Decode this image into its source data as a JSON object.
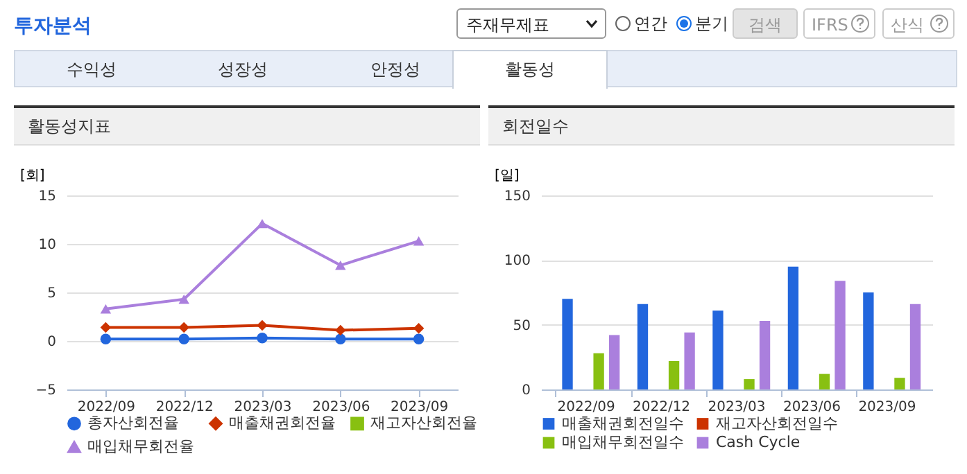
{
  "chart_data": [
    {
      "type": "other",
      "title": "투자분석",
      "annotations": [
        "주재무제표",
        "연간",
        "분기",
        "검색",
        "IFRS",
        "산식",
        "수익성",
        "성장성",
        "안정성",
        "활동성"
      ]
    },
    {
      "type": "line",
      "title": "활동성지표",
      "ylabel": "[회]",
      "categories": [
        "2022/09",
        "2022/12",
        "2023/03",
        "2023/06",
        "2023/09"
      ],
      "ylim": [
        -5,
        15
      ],
      "yticks": [
        -5,
        0,
        5,
        10,
        15
      ],
      "grid": "y",
      "legend": "bottom",
      "series": [
        {
          "name": "총자산회전율",
          "color": "#2266dd",
          "marker": "circle",
          "values": [
            0.2,
            0.2,
            0.3,
            0.2,
            0.2
          ]
        },
        {
          "name": "매출채권회전율",
          "color": "#cc3300",
          "marker": "diamond",
          "values": [
            1.4,
            1.4,
            1.6,
            1.1,
            1.3
          ]
        },
        {
          "name": "재고자산회전율",
          "color": "#88c011",
          "marker": "square",
          "values": [
            null,
            null,
            null,
            null,
            null
          ]
        },
        {
          "name": "매입채무회전율",
          "color": "#aa7fdd",
          "marker": "triangle",
          "values": [
            3.3,
            4.3,
            12.1,
            7.8,
            10.3
          ]
        }
      ]
    },
    {
      "type": "bar",
      "title": "회전일수",
      "ylabel": "[일]",
      "categories": [
        "2022/09",
        "2022/12",
        "2023/03",
        "2023/06",
        "2023/09"
      ],
      "ylim": [
        0,
        150
      ],
      "yticks": [
        0,
        50,
        100,
        150
      ],
      "grid": "y",
      "legend": "bottom",
      "series": [
        {
          "name": "매출채권회전일수",
          "color": "#2266dd",
          "values": [
            70,
            66,
            61,
            95,
            75
          ]
        },
        {
          "name": "재고자산회전일수",
          "color": "#cc3300",
          "values": [
            null,
            null,
            null,
            null,
            null
          ]
        },
        {
          "name": "매입채무회전일수",
          "color": "#88c011",
          "values": [
            28,
            22,
            8,
            12,
            9
          ]
        },
        {
          "name": "Cash Cycle",
          "color": "#aa7fdd",
          "values": [
            42,
            44,
            53,
            84,
            66
          ]
        }
      ]
    }
  ]
}
